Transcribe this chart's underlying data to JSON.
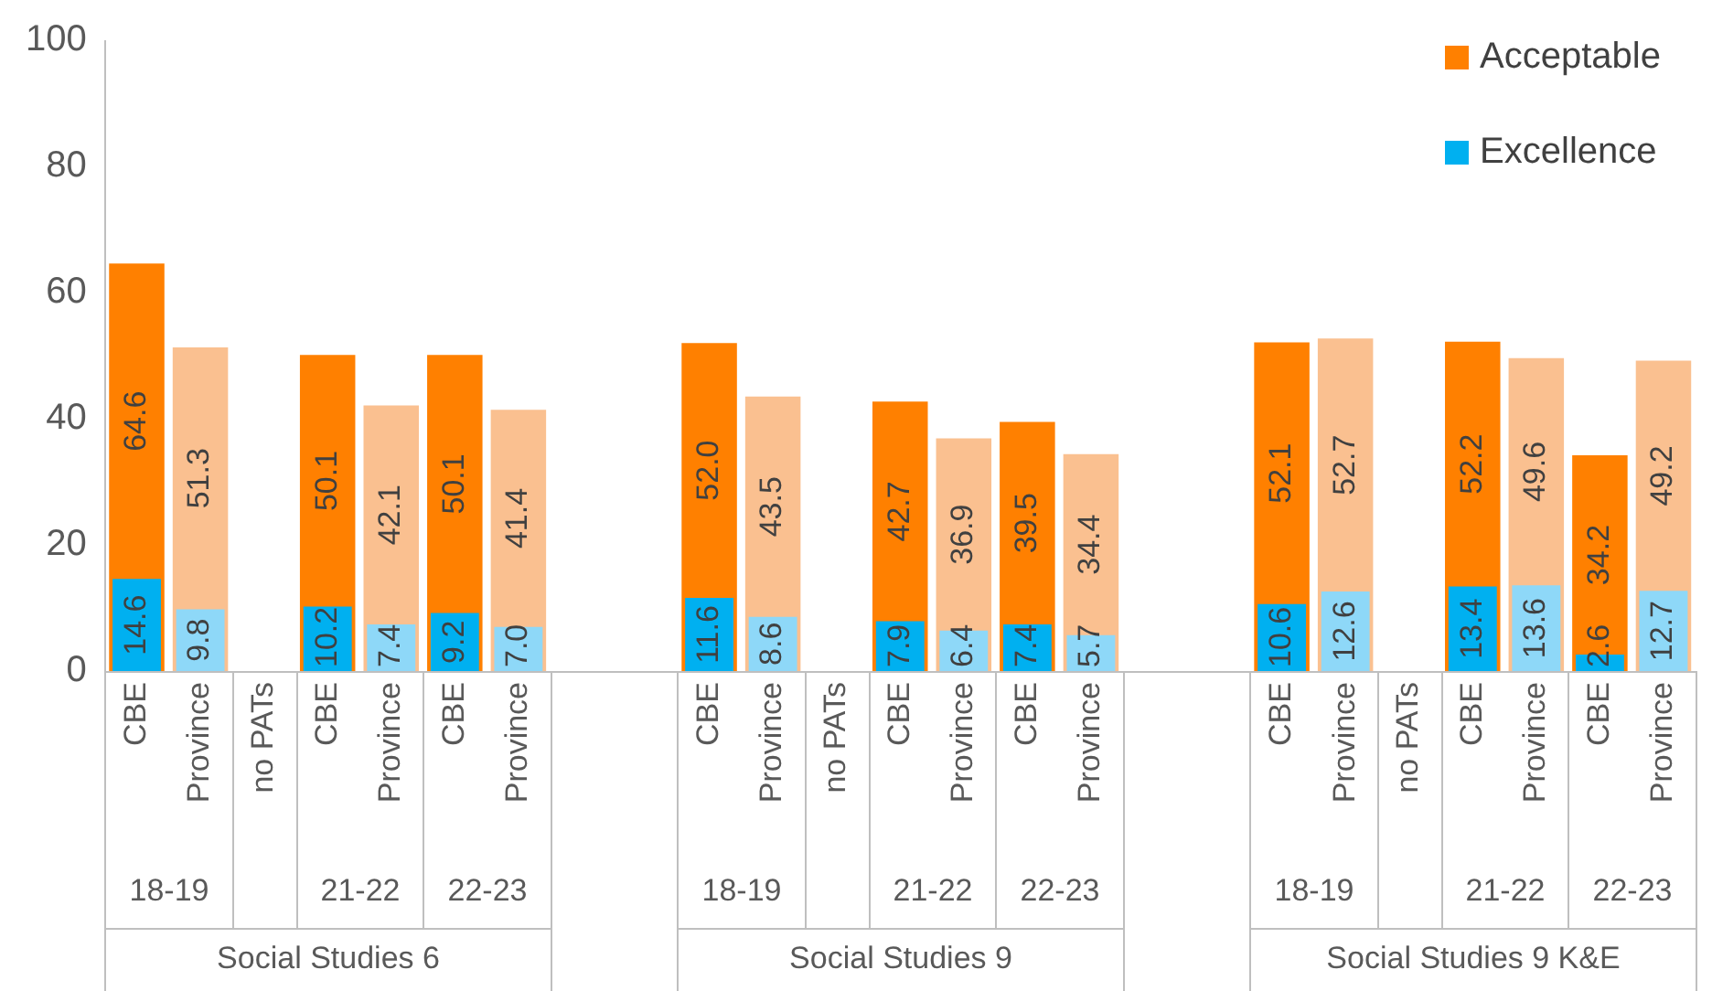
{
  "chart_data": {
    "type": "bar",
    "categories": [
      "CBE",
      "Province",
      "no PATs",
      "CBE",
      "Province",
      "CBE",
      "Province",
      null,
      null,
      "CBE",
      "Province",
      "no PATs",
      "CBE",
      "Province",
      "CBE",
      "Province",
      null,
      null,
      "CBE",
      "Province",
      "no PATs",
      "CBE",
      "Province",
      "CBE",
      "Province"
    ],
    "series": [
      {
        "name": "Acceptable",
        "color": "#ff8000",
        "colors": [
          "#ff8000",
          "#fac090",
          "#ff8000",
          "#ff8000",
          "#fac090",
          "#ff8000",
          "#fac090",
          "#ff8000",
          "#ff8000",
          "#ff8000",
          "#fac090",
          "#ff8000",
          "#ff8000",
          "#fac090",
          "#ff8000",
          "#fac090",
          "#ff8000",
          "#ff8000",
          "#ff8000",
          "#fac090",
          "#ff8000",
          "#ff8000",
          "#fac090",
          "#ff8000",
          "#fac090"
        ],
        "values": [
          64.6,
          51.3,
          null,
          50.1,
          42.1,
          50.1,
          41.4,
          null,
          null,
          52.0,
          43.5,
          null,
          42.7,
          36.9,
          39.5,
          34.4,
          null,
          null,
          52.1,
          52.7,
          null,
          52.2,
          49.6,
          34.2,
          49.2
        ],
        "value_labels": [
          "64.6",
          "51.3",
          null,
          "50.1",
          "42.1",
          "50.1",
          "41.4",
          null,
          null,
          "52.0",
          "43.5",
          null,
          "42.7",
          "36.9",
          "39.5",
          "34.4",
          null,
          null,
          "52.1",
          "52.7",
          null,
          "52.2",
          "49.6",
          "34.2",
          "49.2"
        ]
      },
      {
        "name": "Excellence",
        "color": "#00b0f0",
        "colors": [
          "#00b0f0",
          "#8ed8f8",
          "#00b0f0",
          "#00b0f0",
          "#8ed8f8",
          "#00b0f0",
          "#8ed8f8",
          "#00b0f0",
          "#00b0f0",
          "#00b0f0",
          "#8ed8f8",
          "#00b0f0",
          "#00b0f0",
          "#8ed8f8",
          "#00b0f0",
          "#8ed8f8",
          "#00b0f0",
          "#00b0f0",
          "#00b0f0",
          "#8ed8f8",
          "#00b0f0",
          "#00b0f0",
          "#8ed8f8",
          "#00b0f0",
          "#8ed8f8"
        ],
        "values": [
          14.6,
          9.8,
          null,
          10.2,
          7.4,
          9.2,
          7.0,
          null,
          null,
          11.6,
          8.6,
          null,
          7.9,
          6.4,
          7.4,
          5.7,
          null,
          null,
          10.6,
          12.6,
          null,
          13.4,
          13.6,
          2.6,
          12.7
        ],
        "value_labels": [
          "14.6",
          "9.8",
          null,
          "10.2",
          "7.4",
          "9.2",
          "7.0",
          null,
          null,
          "11.6",
          "8.6",
          null,
          "7.9",
          "6.4",
          "7.4",
          "5.7",
          null,
          null,
          "10.6",
          "12.6",
          null,
          "13.4",
          "13.6",
          "2.6",
          "12.7"
        ]
      }
    ],
    "ylim": [
      0,
      100
    ],
    "yticks": [
      0,
      20,
      40,
      60,
      80,
      100
    ],
    "legend": "top right",
    "annotations": [
      "18-19",
      "21-22",
      "22-23",
      "18-19",
      "21-22",
      "22-23",
      "18-19",
      "21-22",
      "22-23",
      "Social Studies 6",
      "Social Studies 9",
      "Social Studies 9 K&E"
    ]
  }
}
